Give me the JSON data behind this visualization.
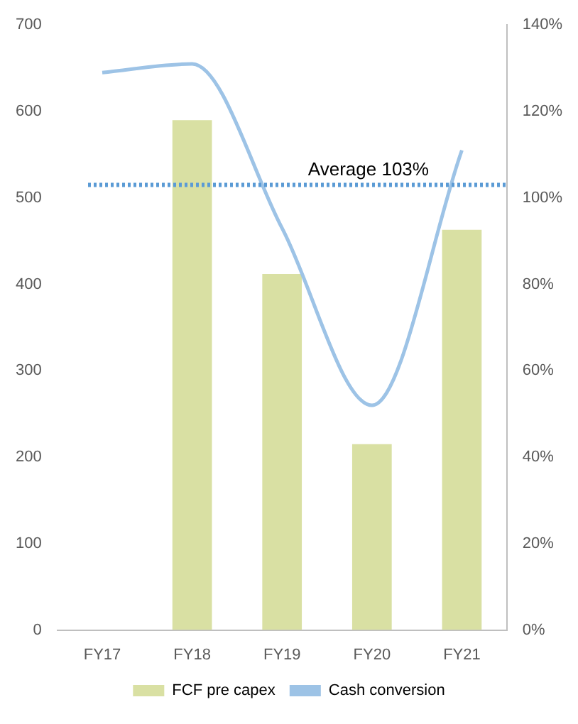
{
  "chart_data": {
    "type": "bar",
    "categories": [
      "FY17",
      "FY18",
      "FY19",
      "FY20",
      "FY21"
    ],
    "series": [
      {
        "name": "FCF pre capex",
        "color": "#d9e0a3",
        "values": [
          null,
          590,
          412,
          215,
          463
        ]
      },
      {
        "name": "Cash conversion",
        "type": "line",
        "axis": "y2",
        "color": "#9dc3e6",
        "values": [
          129,
          131,
          93,
          52,
          111
        ]
      }
    ],
    "ylim": [
      0,
      700
    ],
    "yticks": [
      0,
      100,
      200,
      300,
      400,
      500,
      600,
      700
    ],
    "y2lim": [
      0,
      140
    ],
    "y2ticks": [
      {
        "value": 0,
        "label": "0%"
      },
      {
        "value": 20,
        "label": "20%"
      },
      {
        "value": 40,
        "label": "40%"
      },
      {
        "value": 60,
        "label": "60%"
      },
      {
        "value": 80,
        "label": "80%"
      },
      {
        "value": 100,
        "label": "100%"
      },
      {
        "value": 120,
        "label": "120%"
      },
      {
        "value": 140,
        "label": "140%"
      }
    ],
    "ref_lines": [
      {
        "axis": "y2",
        "value": 103,
        "label": "Average 103%",
        "color": "#5b9bd5",
        "line_style": "dotted"
      }
    ],
    "legend": "bottom",
    "grid": false,
    "marker": "none",
    "line_style": "solid"
  }
}
